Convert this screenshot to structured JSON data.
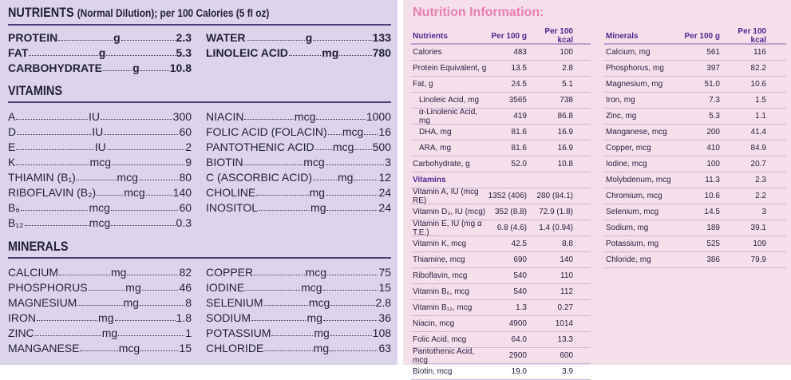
{
  "left": {
    "nutrients": {
      "title": "NUTRIENTS",
      "subtitle": "(Normal Dilution); per 100 Calories (5 fl oz)",
      "col1": [
        {
          "name": "PROTEIN",
          "unit": "g",
          "value": "2.3"
        },
        {
          "name": "FAT",
          "unit": "g",
          "value": "5.3"
        },
        {
          "name": "CARBOHYDRATE",
          "unit": "g",
          "value": "10.8"
        }
      ],
      "col2": [
        {
          "name": "WATER",
          "unit": "g",
          "value": "133"
        },
        {
          "name": "LINOLEIC ACID",
          "unit": "mg",
          "value": "780"
        }
      ]
    },
    "vitamins": {
      "title": "VITAMINS",
      "col1": [
        {
          "name": "A",
          "unit": "IU",
          "value": "300"
        },
        {
          "name": "D",
          "unit": "IU",
          "value": "60"
        },
        {
          "name": "E",
          "unit": "IU",
          "value": "2"
        },
        {
          "name": "K",
          "unit": "mcg",
          "value": "9"
        },
        {
          "name": "THIAMIN (B₁)",
          "unit": "mcg",
          "value": "80"
        },
        {
          "name": "RIBOFLAVIN (B₂)",
          "unit": "mcg",
          "value": "140"
        },
        {
          "name": "B₆",
          "unit": "mcg",
          "value": "60"
        },
        {
          "name": "B₁₂",
          "unit": "mcg",
          "value": "0.3"
        }
      ],
      "col2": [
        {
          "name": "NIACIN",
          "unit": "mcg",
          "value": "1000"
        },
        {
          "name": "FOLIC ACID (FOLACIN)",
          "unit": "mcg",
          "value": "16"
        },
        {
          "name": "PANTOTHENIC ACID",
          "unit": "mcg",
          "value": "500"
        },
        {
          "name": "BIOTIN",
          "unit": "mcg",
          "value": "3"
        },
        {
          "name": "C (ASCORBIC ACID)",
          "unit": "mg",
          "value": "12"
        },
        {
          "name": "CHOLINE",
          "unit": "mg",
          "value": "24"
        },
        {
          "name": "INOSITOL",
          "unit": "mg",
          "value": "24"
        }
      ]
    },
    "minerals": {
      "title": "MINERALS",
      "col1": [
        {
          "name": "CALCIUM",
          "unit": "mg",
          "value": "82"
        },
        {
          "name": "PHOSPHORUS",
          "unit": "mg",
          "value": "46"
        },
        {
          "name": "MAGNESIUM",
          "unit": "mg",
          "value": "8"
        },
        {
          "name": "IRON",
          "unit": "mg",
          "value": "1.8"
        },
        {
          "name": "ZINC",
          "unit": "mg",
          "value": "1"
        },
        {
          "name": "MANGANESE",
          "unit": "mcg",
          "value": "15"
        }
      ],
      "col2": [
        {
          "name": "COPPER",
          "unit": "mcg",
          "value": "75"
        },
        {
          "name": "IODINE",
          "unit": "mcg",
          "value": "15"
        },
        {
          "name": "SELENIUM",
          "unit": "mcg",
          "value": "2.8"
        },
        {
          "name": "SODIUM",
          "unit": "mg",
          "value": "36"
        },
        {
          "name": "POTASSIUM",
          "unit": "mg",
          "value": "108"
        },
        {
          "name": "CHLORIDE",
          "unit": "mg",
          "value": "63"
        }
      ]
    }
  },
  "right": {
    "title": "Nutrition Information:",
    "table1": [
      {
        "t": "hd",
        "c": [
          "Nutrients",
          "Per 100 g",
          "Per 100 kcal"
        ]
      },
      {
        "c": [
          "Calories",
          "483",
          "100"
        ]
      },
      {
        "c": [
          "Protein Equivalent, g",
          "13.5",
          "2.8"
        ]
      },
      {
        "c": [
          "Fat, g",
          "24.5",
          "5.1"
        ]
      },
      {
        "t": "ind",
        "c": [
          "Linoleic Acid, mg",
          "3565",
          "738"
        ]
      },
      {
        "t": "ind",
        "c": [
          "α-Linolenic Acid, mg",
          "419",
          "86.8"
        ]
      },
      {
        "t": "ind",
        "c": [
          "DHA, mg",
          "81.6",
          "16.9"
        ]
      },
      {
        "t": "ind",
        "c": [
          "ARA, mg",
          "81.6",
          "16.9"
        ]
      },
      {
        "c": [
          "Carbohydrate, g",
          "52.0",
          "10.8"
        ]
      },
      {
        "t": "sec",
        "c": [
          "Vitamins",
          "",
          ""
        ]
      },
      {
        "c": [
          "Vitamin A, IU (mcg RE)",
          "1352 (406)",
          "280 (84.1)"
        ]
      },
      {
        "c": [
          "Vitamin D₃, IU (mcg)",
          "352 (8.8)",
          "72.9 (1.8)"
        ]
      },
      {
        "c": [
          "Vitamin E, IU (mg α T.E.)",
          "6.8 (4.6)",
          "1.4 (0.94)"
        ]
      },
      {
        "c": [
          "Vitamin K, mcg",
          "42.5",
          "8.8"
        ]
      },
      {
        "c": [
          "Thiamine, mcg",
          "690",
          "140"
        ]
      },
      {
        "c": [
          "Riboflavin, mcg",
          "540",
          "110"
        ]
      },
      {
        "c": [
          "Vitamin B₆, mcg",
          "540",
          "112"
        ]
      },
      {
        "c": [
          "Vitamin B₁₂, mcg",
          "1.3",
          "0.27"
        ]
      },
      {
        "c": [
          "Niacin, mcg",
          "4900",
          "1014"
        ]
      },
      {
        "c": [
          "Folic Acid, mcg",
          "64.0",
          "13.3"
        ]
      },
      {
        "c": [
          "Pantothenic Acid, mcg",
          "2900",
          "600"
        ]
      },
      {
        "c": [
          "Biotin, mcg",
          "19.0",
          "3.9"
        ]
      }
    ],
    "table2": [
      {
        "t": "hd",
        "c": [
          "Minerals",
          "Per 100 g",
          "Per 100 kcal"
        ]
      },
      {
        "c": [
          "Calcium, mg",
          "561",
          "116"
        ]
      },
      {
        "c": [
          "Phosphorus, mg",
          "397",
          "82.2"
        ]
      },
      {
        "c": [
          "Magnesium, mg",
          "51.0",
          "10.6"
        ]
      },
      {
        "c": [
          "Iron, mg",
          "7.3",
          "1.5"
        ]
      },
      {
        "c": [
          "Zinc, mg",
          "5.3",
          "1.1"
        ]
      },
      {
        "c": [
          "Manganese, mcg",
          "200",
          "41.4"
        ]
      },
      {
        "c": [
          "Copper, mcg",
          "410",
          "84.9"
        ]
      },
      {
        "c": [
          "Iodine, mcg",
          "100",
          "20.7"
        ]
      },
      {
        "c": [
          "Molybdenum, mcg",
          "11.3",
          "2.3"
        ]
      },
      {
        "c": [
          "Chromium, mcg",
          "10.6",
          "2.2"
        ]
      },
      {
        "c": [
          "Selenium, mcg",
          "14.5",
          "3"
        ]
      },
      {
        "c": [
          "Sodium, mg",
          "189",
          "39.1"
        ]
      },
      {
        "c": [
          "Potassium, mg",
          "525",
          "109"
        ]
      },
      {
        "c": [
          "Chloride, mg",
          "386",
          "79.9"
        ]
      }
    ]
  }
}
